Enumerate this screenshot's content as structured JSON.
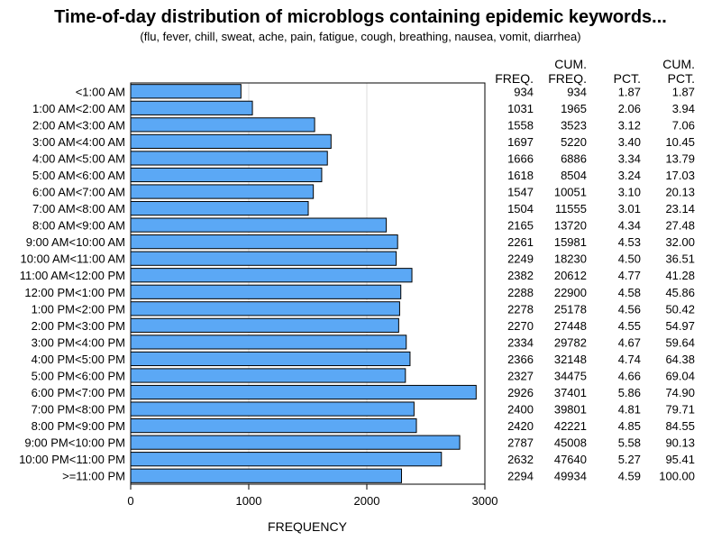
{
  "chart_data": {
    "type": "bar",
    "orientation": "horizontal",
    "title": "Time-of-day distribution of microblogs containing epidemic keywords...",
    "subtitle": "(flu, fever, chill, sweat, ache, pain, fatigue, cough, breathing, nausea, vomit, diarrhea)",
    "xlabel": "FREQUENCY",
    "xlim": [
      0,
      3000
    ],
    "xticks": [
      "0",
      "1000",
      "2000",
      "3000"
    ],
    "grid": "vertical",
    "bar_color": "#5ba8f5",
    "table_headers": {
      "freq": "FREQ.",
      "cum_freq": [
        "CUM.",
        "FREQ."
      ],
      "pct": "PCT.",
      "cum_pct": [
        "CUM.",
        "PCT."
      ]
    },
    "categories": [
      "<1:00 AM",
      "1:00 AM<2:00 AM",
      "2:00 AM<3:00 AM",
      "3:00 AM<4:00 AM",
      "4:00 AM<5:00 AM",
      "5:00 AM<6:00 AM",
      "6:00 AM<7:00 AM",
      "7:00 AM<8:00 AM",
      "8:00 AM<9:00 AM",
      "9:00 AM<10:00 AM",
      "10:00 AM<11:00 AM",
      "11:00 AM<12:00 PM",
      "12:00 PM<1:00 PM",
      "1:00 PM<2:00 PM",
      "2:00 PM<3:00 PM",
      "3:00 PM<4:00 PM",
      "4:00 PM<5:00 PM",
      "5:00 PM<6:00 PM",
      "6:00 PM<7:00 PM",
      "7:00 PM<8:00 PM",
      "8:00 PM<9:00 PM",
      "9:00 PM<10:00 PM",
      "10:00 PM<11:00 PM",
      ">=11:00 PM"
    ],
    "values": [
      934,
      1031,
      1558,
      1697,
      1666,
      1618,
      1547,
      1504,
      2165,
      2261,
      2249,
      2382,
      2288,
      2278,
      2270,
      2334,
      2366,
      2327,
      2926,
      2400,
      2420,
      2787,
      2632,
      2294
    ],
    "cum_freq": [
      "934",
      "1965",
      "3523",
      "5220",
      "6886",
      "8504",
      "10051",
      "11555",
      "13720",
      "15981",
      "18230",
      "20612",
      "22900",
      "25178",
      "27448",
      "29782",
      "32148",
      "34475",
      "37401",
      "39801",
      "42221",
      "45008",
      "47640",
      "49934"
    ],
    "pct": [
      "1.87",
      "2.06",
      "3.12",
      "3.40",
      "3.34",
      "3.24",
      "3.10",
      "3.01",
      "4.34",
      "4.53",
      "4.50",
      "4.77",
      "4.58",
      "4.56",
      "4.55",
      "4.67",
      "4.74",
      "4.66",
      "5.86",
      "4.81",
      "4.85",
      "5.58",
      "5.27",
      "4.59"
    ],
    "cum_pct": [
      "1.87",
      "3.94",
      "7.06",
      "10.45",
      "13.79",
      "17.03",
      "20.13",
      "23.14",
      "27.48",
      "32.00",
      "36.51",
      "41.28",
      "45.86",
      "50.42",
      "54.97",
      "59.64",
      "64.38",
      "69.04",
      "74.90",
      "79.71",
      "84.55",
      "90.13",
      "95.41",
      "100.00"
    ]
  }
}
